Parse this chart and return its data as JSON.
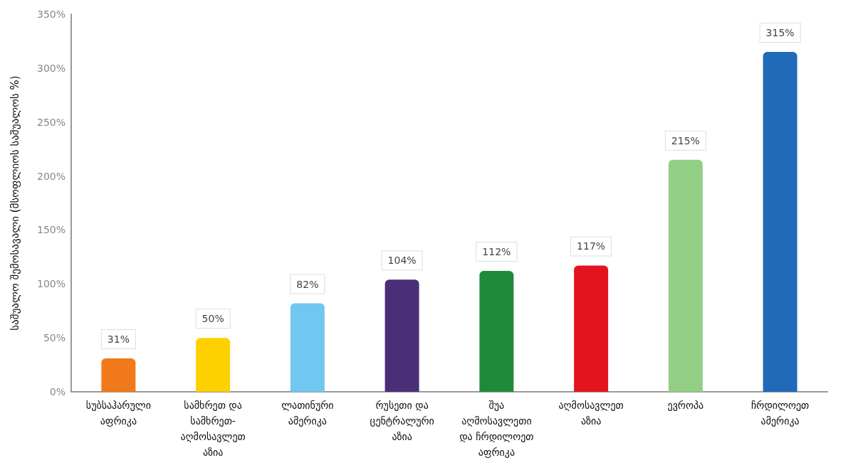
{
  "chart_data": {
    "type": "bar",
    "ylabel": "საშუალო შემოსავალი (მსოფლიოს საშუალოს %)",
    "categories": [
      "სუბსაჰარული აფრიკა",
      "სამხრეთ და სამხრეთ-აღმოსავლეთ აზია",
      "ლათინური ამერიკა",
      "რუსეთი და ცენტრალური აზია",
      "შუა აღმოსავლეთი და ჩრდილოეთ აფრიკა",
      "აღმოსავლეთ აზია",
      "ევროპა",
      "ჩრდილოეთ ამერიკა"
    ],
    "values": [
      31,
      50,
      82,
      104,
      112,
      117,
      215,
      315
    ],
    "value_labels": [
      "31%",
      "50%",
      "82%",
      "104%",
      "112%",
      "117%",
      "215%",
      "315%"
    ],
    "colors": [
      "#f07a1a",
      "#ffd000",
      "#70c8f0",
      "#4a2f78",
      "#1e8a3a",
      "#e3141e",
      "#92cf85",
      "#1f6bb8"
    ],
    "ylim": [
      0,
      350
    ],
    "yticks": [
      {
        "value": 0,
        "label": "0%"
      },
      {
        "value": 50,
        "label": "50%"
      },
      {
        "value": 100,
        "label": "100%"
      },
      {
        "value": 150,
        "label": "150%"
      },
      {
        "value": 200,
        "label": "200%"
      },
      {
        "value": 250,
        "label": "250%"
      },
      {
        "value": 300,
        "label": "300%"
      },
      {
        "value": 350,
        "label": "350%"
      }
    ],
    "grid": false
  }
}
